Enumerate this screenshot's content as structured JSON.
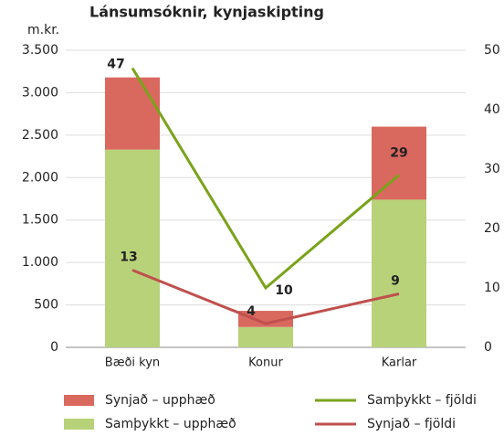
{
  "chart_data": {
    "type": "bar",
    "title": "Lánsumsóknir, kynjaskipting",
    "y_label": "m.kr.",
    "categories": [
      "Bæði kyn",
      "Konur",
      "Karlar"
    ],
    "series": [
      {
        "name": "Synjað – upphæð",
        "type": "bar",
        "color": "#d9685f",
        "values": [
          850,
          190,
          860
        ]
      },
      {
        "name": "Samþykkt – upphæð",
        "type": "bar",
        "color": "#b8d27a",
        "values": [
          2330,
          240,
          1740
        ]
      },
      {
        "name": "Samþykkt – fjöldi",
        "type": "line",
        "axis": "y2",
        "color": "#7aa31a",
        "values": [
          47,
          10,
          29
        ]
      },
      {
        "name": "Synjað – fjöldi",
        "type": "line",
        "axis": "y2",
        "color": "#c0504d",
        "values": [
          13,
          4,
          9
        ]
      }
    ],
    "ylim": [
      0,
      3500
    ],
    "yticks": [
      0,
      {
        "value": 500,
        "label": "500"
      },
      {
        "value": 1000,
        "label": "1.000"
      },
      {
        "value": 1500,
        "label": "1.500"
      },
      {
        "value": 2000,
        "label": "2.000"
      },
      {
        "value": 2500,
        "label": "2.500"
      },
      {
        "value": 3000,
        "label": "3.000"
      },
      {
        "value": 3500,
        "label": "3.500"
      }
    ],
    "y2lim": [
      0,
      50
    ],
    "y2ticks": [
      0,
      10,
      20,
      30,
      40,
      50
    ],
    "grid": true
  }
}
